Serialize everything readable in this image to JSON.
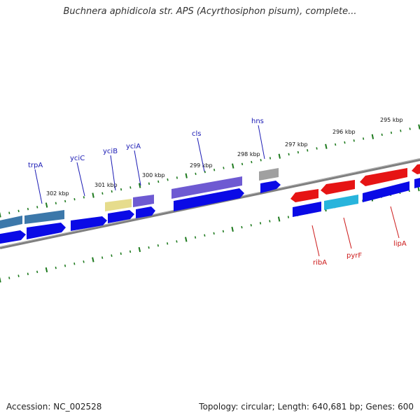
{
  "title": "Buchnera aphidicola str. APS (Acyrthosiphon pisum), complete...",
  "footer": {
    "accession": "Accession: NC_002528",
    "topology": "Topology: circular; Length: 640,681 bp; Genes: 600"
  },
  "colors": {
    "ruler_tick": "#1e7a1e",
    "backbone": "#7f7f7f",
    "forward_label": "#1a1ab4",
    "reverse_label": "#cc1a1a",
    "cds": "#0a0ae6",
    "steel": "#3c78aa",
    "yellow": "#e6dc8c",
    "purple": "#6e5ad2",
    "gray": "#a0a0a0",
    "red": "#e61414",
    "cyan": "#28b4dc"
  },
  "ruler": {
    "ticks": [
      "295 kbp",
      "296 kbp",
      "297 kbp",
      "298 kbp",
      "299 kbp",
      "300 kbp",
      "301 kbp",
      "302 kbp"
    ]
  },
  "genes": [
    {
      "name": "trpA",
      "strand": "forward"
    },
    {
      "name": "yciC",
      "strand": "forward"
    },
    {
      "name": "yciB",
      "strand": "forward"
    },
    {
      "name": "yciA",
      "strand": "forward"
    },
    {
      "name": "cls",
      "strand": "forward"
    },
    {
      "name": "hns",
      "strand": "forward"
    },
    {
      "name": "ribA",
      "strand": "reverse"
    },
    {
      "name": "pyrF",
      "strand": "reverse"
    },
    {
      "name": "lipA",
      "strand": "reverse"
    }
  ]
}
